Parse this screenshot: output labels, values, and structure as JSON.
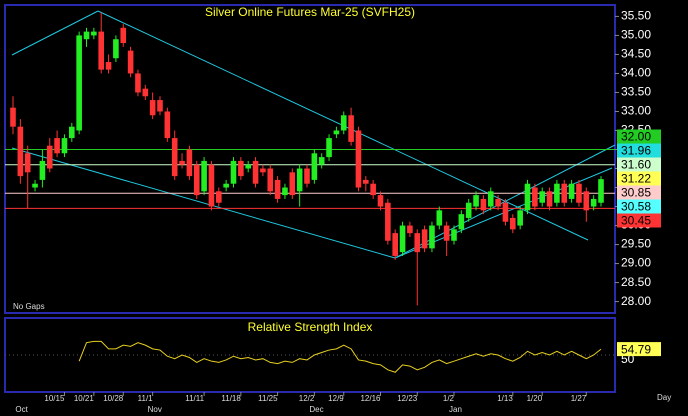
{
  "chart_data": [
    {
      "type": "candlestick",
      "title": "Silver Online Futures Mar-25 (SVFH25)",
      "annotation": "No Gaps",
      "x_axis_label": "Day",
      "categories": [
        null,
        null,
        null,
        null,
        null,
        null,
        null,
        "10/15",
        null,
        null,
        null,
        "10/21",
        null,
        null,
        null,
        "10/28",
        null,
        null,
        null,
        "11/1",
        null,
        null,
        null,
        null,
        null,
        null,
        "11/11",
        null,
        null,
        null,
        null,
        "11/18",
        null,
        null,
        null,
        null,
        "11/25",
        null,
        null,
        null,
        null,
        "12/2",
        null,
        null,
        null,
        "12/9",
        null,
        null,
        null,
        null,
        "12/16",
        null,
        null,
        null,
        null,
        "12/23",
        null,
        null,
        null,
        null,
        "1/2",
        null,
        null,
        null,
        null,
        null,
        null,
        null,
        "1/13",
        null,
        null,
        null,
        "1/20",
        null,
        null,
        null,
        null,
        null,
        "1/27",
        null,
        null
      ],
      "months": [
        null,
        "Oct",
        null,
        null,
        null,
        null,
        null,
        null,
        null,
        null,
        null,
        null,
        null,
        null,
        null,
        null,
        null,
        null,
        null,
        "Nov",
        null,
        null,
        null,
        null,
        null,
        null,
        null,
        null,
        null,
        null,
        null,
        null,
        null,
        null,
        null,
        null,
        null,
        null,
        null,
        null,
        null,
        "Dec",
        null,
        null,
        null,
        null,
        null,
        null,
        null,
        null,
        null,
        null,
        null,
        null,
        null,
        null,
        null,
        null,
        null,
        null,
        "Jan",
        null,
        null,
        null,
        null,
        null,
        null,
        null,
        null,
        null,
        null,
        null,
        null,
        null,
        null,
        null,
        null,
        null,
        null,
        null,
        null
      ],
      "open": [
        33.1,
        32.6,
        31.9,
        31.0,
        31.2,
        32.1,
        32.3,
        31.9,
        32.3,
        32.5,
        34.9,
        35.0,
        35.1,
        34.3,
        34.4,
        35.2,
        34.6,
        34.0,
        33.6,
        33.3,
        33.3,
        33.0,
        32.3,
        31.7,
        32.0,
        31.6,
        30.9,
        31.6,
        30.9,
        31.0,
        31.1,
        31.7,
        31.5,
        31.7,
        31.5,
        31.5,
        31.2,
        30.8,
        31.4,
        30.9,
        31.5,
        31.2,
        31.6,
        31.8,
        32.4,
        32.5,
        32.9,
        32.5,
        31.2,
        31.1,
        30.8,
        30.6,
        29.8,
        29.3,
        30.0,
        29.8,
        29.9,
        29.4,
        30.0,
        30.0,
        29.6,
        29.9,
        30.2,
        30.5,
        30.7,
        30.5,
        30.7,
        30.6,
        30.2,
        30.0,
        30.4,
        31.0,
        30.6,
        30.9,
        30.6,
        31.1,
        30.7,
        31.1,
        30.9,
        30.5,
        30.6
      ],
      "high": [
        33.4,
        32.8,
        32.1,
        31.2,
        32.0,
        32.3,
        32.5,
        32.4,
        32.7,
        35.1,
        35.2,
        35.2,
        35.6,
        34.5,
        35.0,
        35.3,
        34.7,
        34.1,
        33.7,
        33.5,
        33.4,
        33.1,
        32.5,
        31.9,
        32.1,
        31.7,
        31.8,
        31.7,
        31.0,
        31.2,
        31.8,
        31.8,
        31.7,
        31.8,
        31.6,
        31.6,
        31.3,
        31.1,
        31.5,
        31.6,
        31.6,
        32.0,
        31.9,
        32.4,
        32.6,
        33.0,
        33.1,
        32.6,
        31.3,
        31.2,
        30.9,
        30.7,
        29.9,
        30.1,
        30.1,
        29.9,
        30.0,
        30.1,
        30.5,
        30.1,
        30.0,
        30.4,
        30.7,
        30.9,
        30.8,
        31.0,
        30.8,
        30.7,
        30.3,
        30.5,
        31.2,
        31.1,
        31.0,
        31.0,
        31.2,
        31.2,
        31.2,
        31.2,
        31.0,
        30.8,
        31.3
      ],
      "low": [
        32.4,
        31.1,
        30.45,
        30.9,
        31.0,
        31.4,
        31.8,
        31.8,
        32.2,
        32.4,
        34.7,
        34.9,
        34.0,
        34.0,
        34.3,
        34.7,
        33.9,
        33.4,
        33.3,
        32.8,
        32.9,
        32.2,
        31.2,
        31.5,
        31.2,
        30.7,
        30.8,
        30.4,
        30.5,
        30.9,
        31.0,
        31.2,
        31.4,
        31.0,
        31.3,
        30.8,
        30.6,
        30.7,
        30.7,
        30.5,
        31.0,
        31.1,
        31.5,
        31.7,
        32.3,
        32.4,
        32.1,
        30.9,
        30.9,
        30.7,
        30.4,
        29.5,
        29.1,
        29.2,
        29.7,
        27.9,
        29.3,
        29.3,
        29.9,
        29.2,
        29.5,
        29.8,
        30.1,
        30.4,
        30.3,
        30.4,
        30.4,
        30.0,
        29.8,
        29.9,
        30.3,
        30.4,
        30.5,
        30.4,
        30.5,
        30.5,
        30.6,
        30.5,
        30.1,
        30.4,
        30.5
      ],
      "close": [
        32.6,
        31.3,
        31.4,
        31.1,
        31.7,
        31.5,
        31.9,
        32.3,
        32.6,
        35.0,
        35.1,
        35.1,
        34.1,
        34.1,
        34.9,
        34.8,
        34.0,
        33.5,
        33.4,
        32.9,
        33.0,
        32.3,
        31.3,
        31.6,
        31.3,
        30.8,
        31.7,
        30.5,
        30.6,
        31.1,
        31.7,
        31.3,
        31.6,
        31.1,
        31.4,
        30.9,
        30.7,
        31.0,
        30.8,
        31.5,
        31.1,
        31.9,
        31.8,
        32.3,
        32.5,
        32.9,
        32.2,
        31.0,
        31.1,
        30.8,
        30.5,
        29.6,
        29.2,
        30.0,
        29.8,
        29.3,
        29.4,
        30.0,
        30.4,
        29.6,
        29.9,
        30.3,
        30.6,
        30.8,
        30.4,
        30.9,
        30.5,
        30.1,
        29.9,
        30.4,
        31.1,
        30.5,
        30.9,
        30.5,
        31.1,
        30.6,
        31.1,
        30.6,
        30.4,
        30.7,
        31.22
      ],
      "up_color": "#22ee22",
      "down_color": "#ff3333",
      "ylim": [
        27.7,
        35.8
      ],
      "yticks": [
        {
          "value": 35.5,
          "label": "35.50"
        },
        {
          "value": 35.0,
          "label": "35.00"
        },
        {
          "value": 34.5,
          "label": "34.50"
        },
        {
          "value": 34.0,
          "label": "34.00"
        },
        {
          "value": 33.5,
          "label": "33.50"
        },
        {
          "value": 33.0,
          "label": "33.00"
        },
        {
          "value": 32.5,
          "label": "32.50"
        },
        {
          "value": 32.0,
          "label": "32.00"
        },
        {
          "value": 31.5,
          "label": "31.50"
        },
        {
          "value": 31.0,
          "label": "31.00"
        },
        {
          "value": 30.5,
          "label": "30.50"
        },
        {
          "value": 30.0,
          "label": "30.00"
        },
        {
          "value": 29.5,
          "label": "29.50"
        },
        {
          "value": 29.0,
          "label": "29.00"
        },
        {
          "value": 28.5,
          "label": "28.50"
        },
        {
          "value": 28.0,
          "label": "28.00"
        }
      ],
      "price_labels": [
        {
          "value": 32.0,
          "label": "32.00",
          "color": "#22cc22",
          "line": true
        },
        {
          "value": 31.96,
          "label": "31.96",
          "color": "#22dddd",
          "line": false
        },
        {
          "value": 31.6,
          "label": "31.60",
          "color": "#ccffcc",
          "line": true
        },
        {
          "value": 31.22,
          "label": "31.22",
          "color": "#ffff55",
          "line": false
        },
        {
          "value": 30.85,
          "label": "30.85",
          "color": "#ffcccc",
          "line": true
        },
        {
          "value": 30.58,
          "label": "30.58",
          "color": "#55ffff",
          "line": false
        },
        {
          "value": 30.45,
          "label": "30.45",
          "color": "#ff3333",
          "line": true
        }
      ]
    },
    {
      "type": "line",
      "title": "Relative Strength Index",
      "color": "#e8d020",
      "label_color": "#ffff55",
      "values": [
        null,
        null,
        null,
        null,
        null,
        null,
        null,
        null,
        null,
        45,
        60,
        61,
        61,
        55,
        55,
        58,
        57,
        60,
        58,
        55,
        54,
        49,
        47,
        50,
        48,
        44,
        47,
        45,
        44,
        46,
        49,
        47,
        48,
        46,
        47,
        44,
        43,
        45,
        44,
        47,
        46,
        50,
        52,
        54,
        55,
        58,
        55,
        46,
        45,
        43,
        42,
        38,
        36,
        42,
        41,
        38,
        40,
        44,
        46,
        43,
        45,
        47,
        49,
        51,
        49,
        51,
        50,
        47,
        45,
        48,
        53,
        50,
        52,
        50,
        53,
        50,
        53,
        50,
        47,
        50,
        54.79
      ],
      "ylim": [
        20,
        80
      ],
      "yticks": [
        50
      ]
    }
  ]
}
